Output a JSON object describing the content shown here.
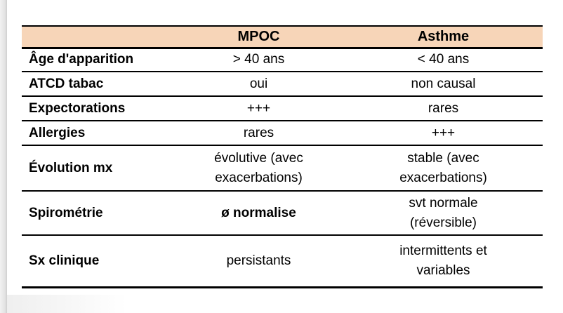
{
  "table": {
    "header": {
      "label": "",
      "mpoc": "MPOC",
      "asthme": "Asthme"
    },
    "rows": [
      {
        "label": "Âge d'apparition",
        "mpoc": "> 40 ans",
        "asthme": "< 40 ans"
      },
      {
        "label": "ATCD tabac",
        "mpoc": "oui",
        "asthme": "non causal"
      },
      {
        "label": "Expectorations",
        "mpoc": "+++",
        "asthme": "rares"
      },
      {
        "label": "Allergies",
        "mpoc": "rares",
        "asthme": "+++"
      },
      {
        "label": "Évolution mx",
        "mpoc": "évolutive (avec\nexacerbations)",
        "asthme": "stable (avec\nexacerbations)"
      },
      {
        "label": "Spirométrie",
        "mpoc": "ø normalise",
        "asthme": "svt normale\n(réversible)"
      },
      {
        "label": "Sx clinique",
        "mpoc": "persistants",
        "asthme": "intermittents et\nvariables"
      }
    ],
    "colors": {
      "header_bg": "#F7D5B8",
      "border": "#000000",
      "text": "#000000"
    }
  }
}
